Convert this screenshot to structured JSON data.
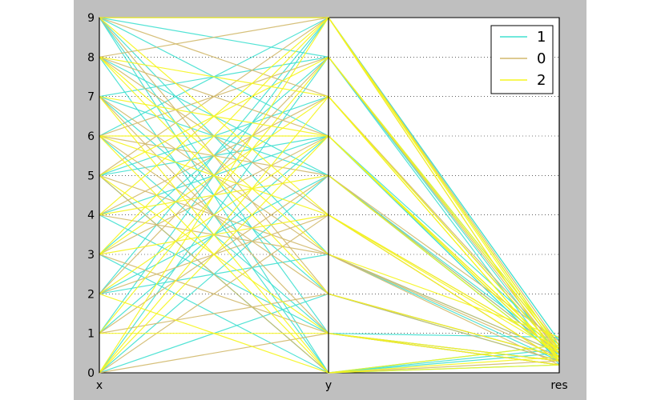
{
  "chart_data": {
    "type": "parallel-coordinates",
    "axes": [
      "x",
      "y",
      "res"
    ],
    "ylim": [
      0,
      9
    ],
    "y_ticks": [
      "0",
      "1",
      "2",
      "3",
      "4",
      "5",
      "6",
      "7",
      "8",
      "9"
    ],
    "grid": "horizontal dotted",
    "legend_position": "top-right",
    "series": [
      {
        "name": "1",
        "color": "#40e0d0",
        "lines": [
          [
            9,
            8,
            0.4
          ],
          [
            9,
            6,
            0.3
          ],
          [
            9,
            0,
            0.2
          ],
          [
            9,
            3,
            0.5
          ],
          [
            8,
            5,
            0.6
          ],
          [
            8,
            0,
            0.7
          ],
          [
            7,
            5,
            0.4
          ],
          [
            7,
            2,
            0.3
          ],
          [
            6,
            9,
            0.8
          ],
          [
            6,
            1,
            0.2
          ],
          [
            5,
            7,
            0.5
          ],
          [
            5,
            0,
            0.6
          ],
          [
            4,
            6,
            0.4
          ],
          [
            4,
            1,
            0.3
          ],
          [
            3,
            8,
            0.7
          ],
          [
            3,
            0,
            0.5
          ],
          [
            2,
            9,
            0.6
          ],
          [
            2,
            5,
            0.4
          ],
          [
            1,
            6,
            0.3
          ],
          [
            1,
            9,
            0.8
          ],
          [
            0,
            5,
            0.5
          ],
          [
            0,
            8,
            0.6
          ],
          [
            9,
            1,
            0.9
          ],
          [
            7,
            8,
            0.2
          ],
          [
            5,
            6,
            0.7
          ],
          [
            2,
            3,
            0.3
          ],
          [
            0,
            2,
            0.4
          ]
        ]
      },
      {
        "name": "0",
        "color": "#d2b96c",
        "lines": [
          [
            9,
            2,
            0.3
          ],
          [
            9,
            7,
            0.5
          ],
          [
            8,
            4,
            0.6
          ],
          [
            8,
            6,
            0.4
          ],
          [
            7,
            3,
            0.2
          ],
          [
            7,
            1,
            0.3
          ],
          [
            6,
            8,
            0.5
          ],
          [
            6,
            2,
            0.4
          ],
          [
            5,
            0,
            0.3
          ],
          [
            5,
            9,
            0.7
          ],
          [
            4,
            7,
            0.6
          ],
          [
            4,
            3,
            0.4
          ],
          [
            3,
            1,
            0.2
          ],
          [
            3,
            6,
            0.5
          ],
          [
            2,
            4,
            0.3
          ],
          [
            2,
            8,
            0.6
          ],
          [
            1,
            2,
            0.4
          ],
          [
            1,
            5,
            0.5
          ],
          [
            0,
            4,
            0.3
          ],
          [
            0,
            1,
            0.2
          ],
          [
            6,
            5,
            0.8
          ],
          [
            8,
            9,
            0.3
          ],
          [
            5,
            3,
            0.5
          ]
        ]
      },
      {
        "name": "2",
        "color": "#f5f51e",
        "lines": [
          [
            9,
            4,
            0.5
          ],
          [
            9,
            9,
            0.6
          ],
          [
            8,
            2,
            0.4
          ],
          [
            8,
            7,
            0.3
          ],
          [
            7,
            6,
            0.5
          ],
          [
            7,
            0,
            0.7
          ],
          [
            6,
            6,
            0.4
          ],
          [
            6,
            4,
            0.3
          ],
          [
            5,
            8,
            0.6
          ],
          [
            5,
            1,
            0.2
          ],
          [
            4,
            9,
            0.5
          ],
          [
            4,
            5,
            0.4
          ],
          [
            3,
            7,
            0.3
          ],
          [
            3,
            4,
            0.6
          ],
          [
            2,
            6,
            0.5
          ],
          [
            2,
            0,
            0.4
          ],
          [
            1,
            8,
            0.7
          ],
          [
            1,
            1,
            0.3
          ],
          [
            0,
            7,
            0.5
          ],
          [
            0,
            6,
            0.4
          ],
          [
            6,
            0,
            0.2
          ],
          [
            8,
            3,
            0.9
          ],
          [
            3,
            9,
            0.3
          ],
          [
            0,
            9,
            0.6
          ]
        ]
      }
    ]
  }
}
